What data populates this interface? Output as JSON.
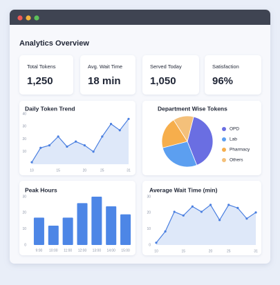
{
  "header": {
    "title": "Analytics Overview"
  },
  "kpis": [
    {
      "label": "Total Tokens",
      "value": "1,250"
    },
    {
      "label": "Avg. Wait Time",
      "value": "18 min"
    },
    {
      "label": "Served Today",
      "value": "1,050"
    },
    {
      "label": "Satisfaction",
      "value": "96%"
    }
  ],
  "chart_data": [
    {
      "type": "area",
      "title": "Daily Token Trend",
      "color": "#4a7fe0",
      "categories": [
        "10",
        null,
        null,
        "15",
        null,
        null,
        "20",
        null,
        "25",
        null,
        null,
        "31"
      ],
      "values": [
        1.6,
        13,
        15,
        22,
        14,
        18,
        15,
        10,
        22,
        32,
        27,
        36
      ],
      "ylim": [
        0,
        40
      ],
      "yticks": [
        10,
        20,
        30,
        40
      ],
      "grid": false
    },
    {
      "type": "pie",
      "title": "Department Wise Tokens",
      "categories": [
        "OPD",
        "Lab",
        "Pharmacy",
        "Others"
      ],
      "values": [
        40,
        27,
        20,
        13
      ],
      "colors": [
        "#6a6ee2",
        "#5c9ff0",
        "#f6ae4c",
        "#f4c07a"
      ]
    },
    {
      "type": "bar",
      "title": "Peak Hours",
      "color": "#4d86e6",
      "categories": [
        "9:00",
        "10:00",
        "11:00",
        "12:00",
        "13:00",
        "14:00",
        "15:00"
      ],
      "values": [
        17,
        12,
        17,
        26,
        30,
        24,
        19
      ],
      "ylim": [
        0,
        30
      ],
      "yticks": [
        0,
        10,
        20,
        30
      ],
      "grid": false
    },
    {
      "type": "area",
      "title": "Average Wait Time (min)",
      "color": "#4a7fe0",
      "categories": [
        "10",
        null,
        null,
        "15",
        null,
        null,
        "20",
        null,
        "25",
        null,
        null,
        "31"
      ],
      "values": [
        1.4,
        8.4,
        20.6,
        18.3,
        23.9,
        20.6,
        24.9,
        15.5,
        24.9,
        23,
        16.4,
        20.2
      ],
      "ylim": [
        0,
        30
      ],
      "yticks": [
        0,
        10,
        20,
        30
      ],
      "grid": false
    }
  ]
}
